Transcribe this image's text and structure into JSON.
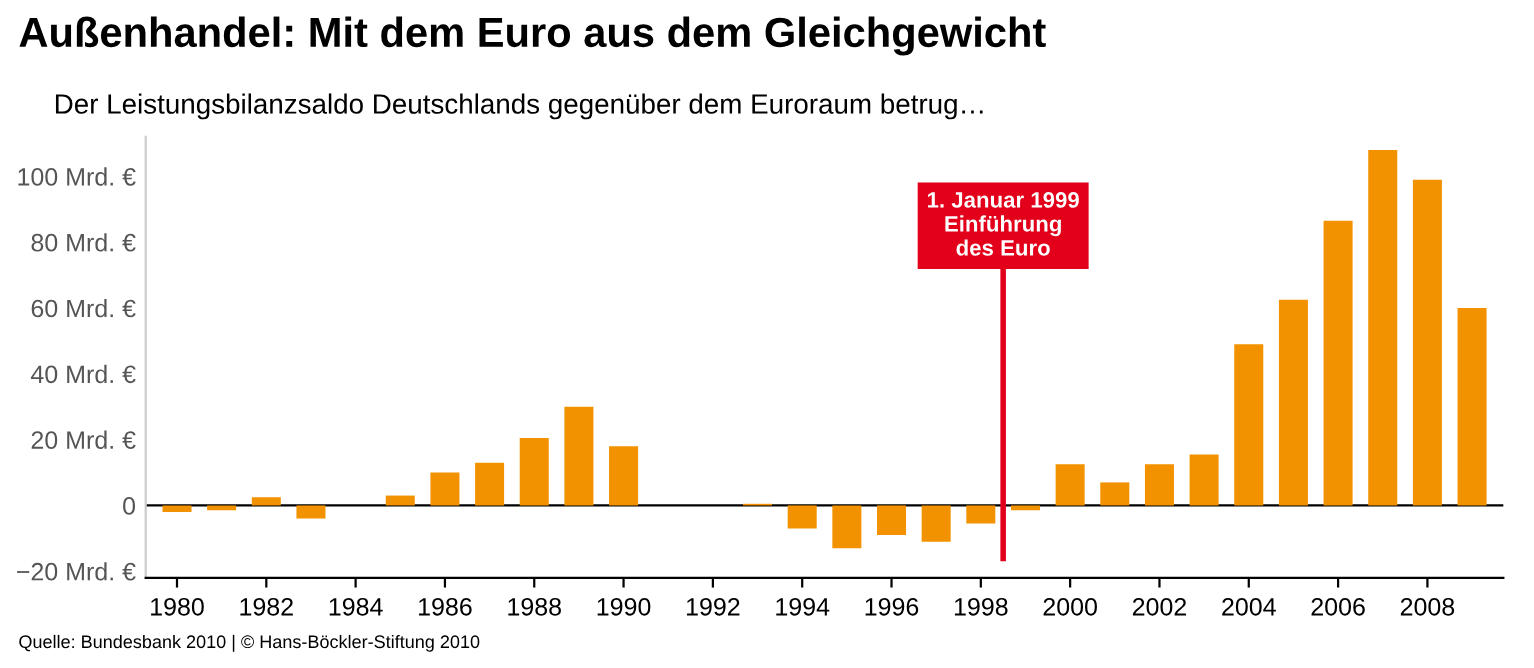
{
  "chart_data": {
    "type": "bar",
    "title": "Außenhandel: Mit dem Euro aus dem Gleichgewicht",
    "subtitle": "Der Leistungsbilanzsaldo Deutschlands gegenüber dem Euroraum betrug…",
    "x": [
      1980,
      1981,
      1982,
      1983,
      1984,
      1985,
      1986,
      1987,
      1988,
      1989,
      1990,
      1991,
      1992,
      1993,
      1994,
      1995,
      1996,
      1997,
      1998,
      1999,
      2000,
      2001,
      2002,
      2003,
      2004,
      2005,
      2006,
      2007,
      2008,
      2009
    ],
    "values": [
      -2,
      -1.5,
      2.5,
      -4,
      0,
      3,
      10,
      13,
      20.5,
      30,
      18,
      null,
      null,
      0.5,
      -7,
      -13,
      -9,
      -11,
      -5.5,
      -1.5,
      12.5,
      7,
      12.5,
      15.5,
      49,
      62.5,
      86.5,
      108,
      99,
      60
    ],
    "color": "#f39200",
    "xlim": [
      1979.3,
      2009.7
    ],
    "xticks": [
      1980,
      1982,
      1984,
      1986,
      1988,
      1990,
      1992,
      1994,
      1996,
      1998,
      2000,
      2002,
      2004,
      2006,
      2008
    ],
    "ylim": [
      -22,
      112
    ],
    "yticks": [
      {
        "value": -20,
        "label": "−20 Mrd. €"
      },
      {
        "value": 0,
        "label": "0"
      },
      {
        "value": 20,
        "label": "20 Mrd. €"
      },
      {
        "value": 40,
        "label": "40 Mrd. €"
      },
      {
        "value": 60,
        "label": "60 Mrd. €"
      },
      {
        "value": 80,
        "label": "80 Mrd. €"
      },
      {
        "value": 100,
        "label": "100 Mrd. €"
      }
    ],
    "ref_lines": [
      {
        "axis": "y",
        "value": 0,
        "color": "#000000"
      },
      {
        "axis": "x",
        "value": 1998.5,
        "label": "1. Januar 1999\nEinführung\ndes Euro",
        "color": "#e2001a"
      }
    ],
    "annotations": [
      "Quelle: Bundesbank 2010 | © Hans-Böckler-Stiftung 2010"
    ],
    "grid": false,
    "legend": false
  }
}
